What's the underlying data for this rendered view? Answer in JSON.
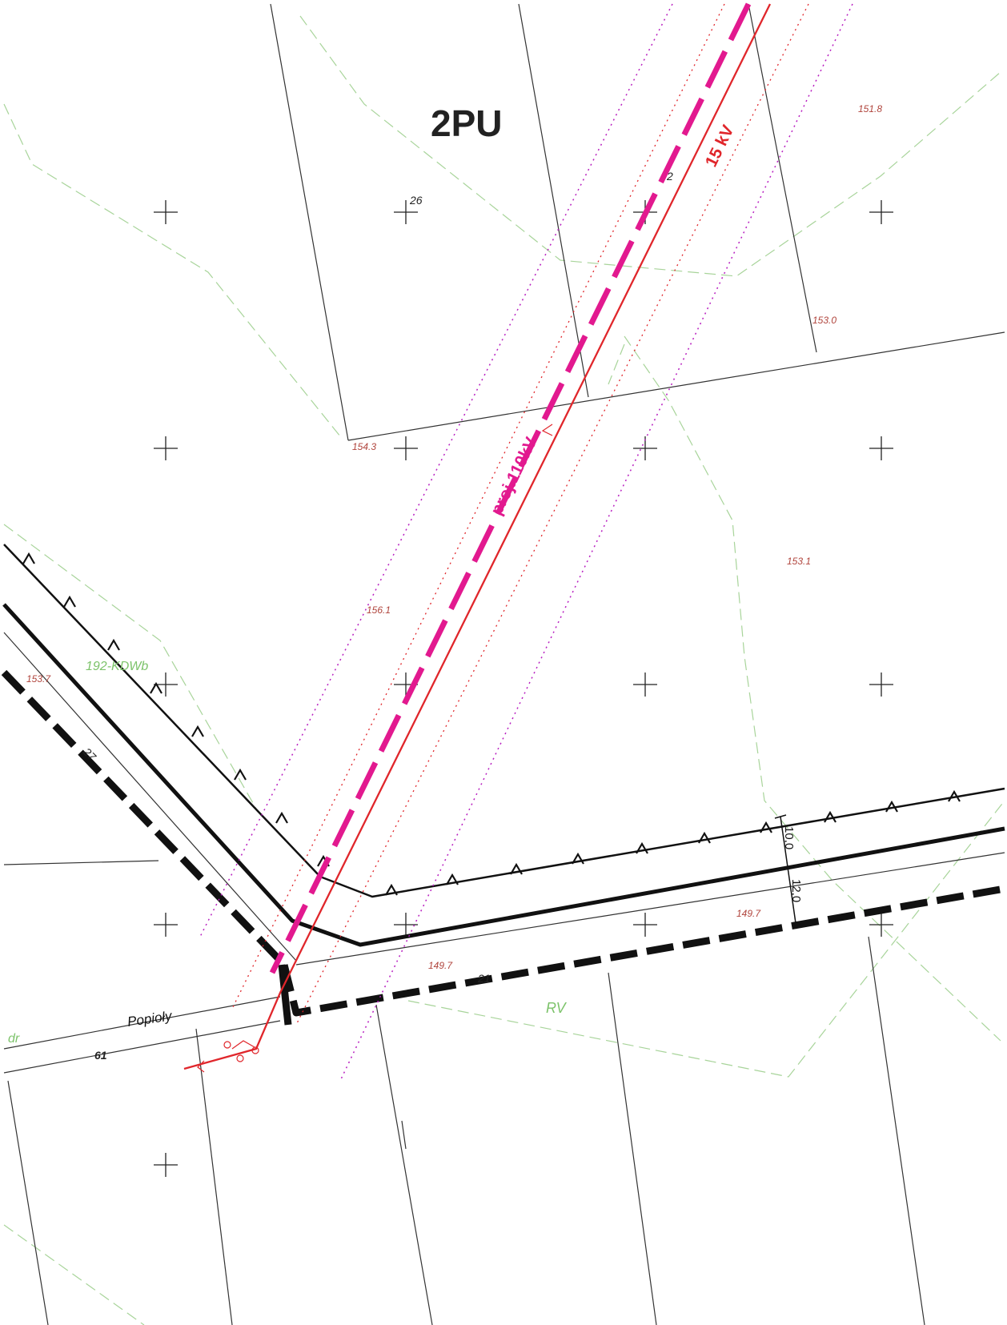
{
  "zone_label": "2PU",
  "power_lines": {
    "existing": {
      "label": "15 kV",
      "color": "#e0262b"
    },
    "projected": {
      "label": "proj.110kV",
      "color": "#e2198f"
    },
    "buffer_color": "#b81fc0"
  },
  "elevations": [
    "151.8",
    "153.0",
    "154.3",
    "153.1",
    "156.1",
    "153.7",
    "149.7",
    "149.7"
  ],
  "parcels": [
    "26",
    "2",
    "27",
    "21",
    "61"
  ],
  "green_labels": [
    "192-KDWb",
    "RV",
    "dr"
  ],
  "street_name": "Popioły",
  "dimensions": [
    "10,0",
    "12,0"
  ],
  "colors": {
    "road": "#111111",
    "boundary": "#333333",
    "landuse_dash": "#a8d49a",
    "elevation_text": "#b0443c"
  }
}
